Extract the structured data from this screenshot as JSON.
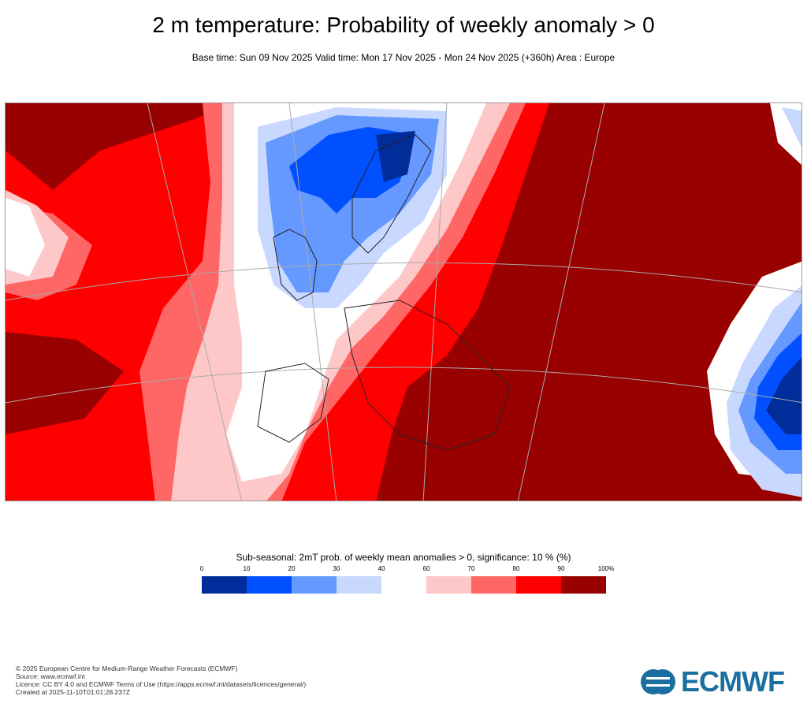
{
  "header": {
    "title": "2 m temperature: Probability of weekly anomaly > 0",
    "subtitle": "Base time: Sun 09 Nov 2025 Valid time: Mon 17 Nov 2025 - Mon 24 Nov 2025 (+360h) Area : Europe"
  },
  "map": {
    "area": "Europe",
    "colors": {
      "very_high": "#990000",
      "high": "#ff0000",
      "mid_high": "#ff6666",
      "low_high": "#ffc8c8",
      "neutral": "#ffffff",
      "low_low": "#c8d8ff",
      "mid_low": "#6699ff",
      "low": "#0050ff",
      "very_low": "#002d99"
    }
  },
  "legend": {
    "title": "Sub-seasonal: 2mT prob. of weekly mean anomalies > 0, significance: 10 % (%)",
    "ticks": [
      "0",
      "10",
      "20",
      "30",
      "40",
      "60",
      "70",
      "80",
      "90",
      "100%"
    ],
    "bins": [
      {
        "range": "0-10",
        "color": "#002d99"
      },
      {
        "range": "10-20",
        "color": "#0050ff"
      },
      {
        "range": "20-30",
        "color": "#6699ff"
      },
      {
        "range": "30-40",
        "color": "#c8d8ff"
      },
      {
        "range": "60-70",
        "color": "#ffc8c8"
      },
      {
        "range": "70-80",
        "color": "#ff6666"
      },
      {
        "range": "80-90",
        "color": "#ff0000"
      },
      {
        "range": "90-100",
        "color": "#990000"
      }
    ]
  },
  "footer": {
    "line1": "© 2025 European Centre for Medium-Range Weather Forecasts (ECMWF)",
    "line2": "Source: www.ecmwf.int",
    "line3": "Licence: CC BY 4.0 and ECMWF Terms of Use (https://apps.ecmwf.int/datasets/licences/general/)",
    "line4": "Created at 2025-11-10T01:01:28.237Z",
    "logo": "ECMWF"
  }
}
